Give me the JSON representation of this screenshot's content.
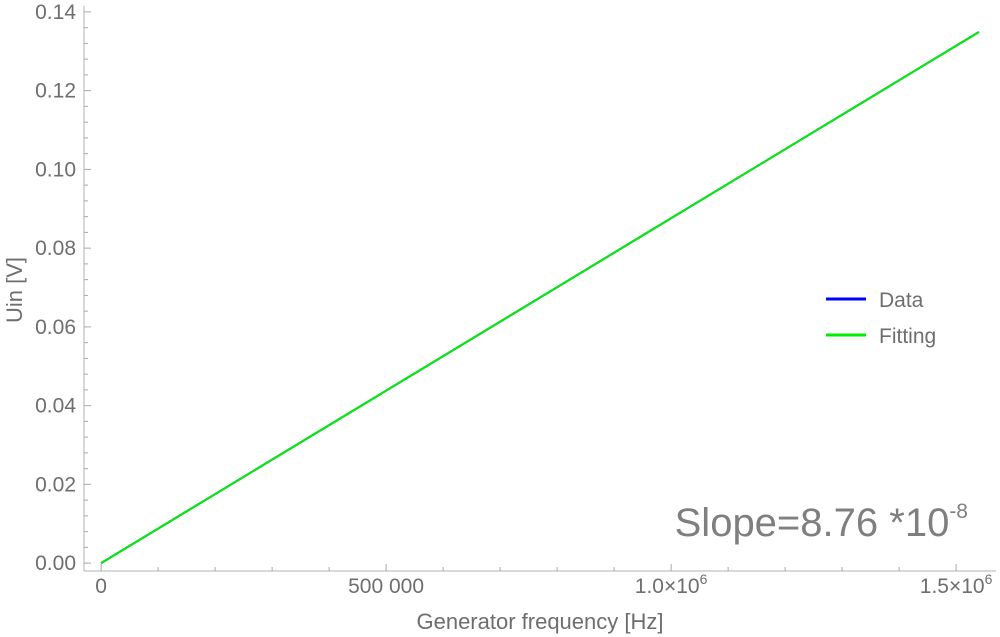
{
  "chart_data": {
    "type": "line",
    "xlabel": "Generator frequency [Hz]",
    "ylabel": "Uin [V]",
    "xlim": [
      -30000,
      1570000
    ],
    "ylim": [
      -0.002,
      0.1415
    ],
    "x_ticks": [
      {
        "value": 0,
        "base": "0",
        "exp": ""
      },
      {
        "value": 500000,
        "base": "500 000",
        "exp": ""
      },
      {
        "value": 1000000,
        "base": "1.0×10",
        "exp": "6"
      },
      {
        "value": 1500000,
        "base": "1.5×10",
        "exp": "6"
      }
    ],
    "y_ticks": [
      {
        "value": 0.0,
        "label": "0.00"
      },
      {
        "value": 0.02,
        "label": "0.02"
      },
      {
        "value": 0.04,
        "label": "0.04"
      },
      {
        "value": 0.06,
        "label": "0.06"
      },
      {
        "value": 0.08,
        "label": "0.08"
      },
      {
        "value": 0.1,
        "label": "0.10"
      },
      {
        "value": 0.12,
        "label": "0.12"
      },
      {
        "value": 0.14,
        "label": "0.14"
      }
    ],
    "series": [
      {
        "name": "Data",
        "color": "#0000ff",
        "x": [
          0,
          1540000
        ],
        "y": [
          0.0,
          0.1349
        ]
      },
      {
        "name": "Fitting",
        "color": "#00ee00",
        "x": [
          0,
          1540000
        ],
        "y": [
          0.0,
          0.1349
        ]
      }
    ],
    "legend_position": "right",
    "annotation": {
      "text": "Slope=8.76 *10",
      "exp": "-8"
    }
  }
}
